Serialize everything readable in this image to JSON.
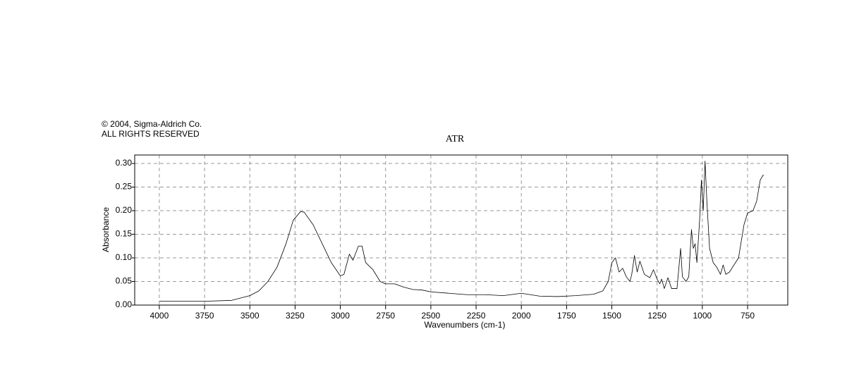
{
  "chart_data": {
    "type": "line",
    "copyright": [
      "© 2004, Sigma-Aldrich Co.",
      "ALL RIGHTS RESERVED"
    ],
    "title": "ATR",
    "x_label": "Wavenumbers (cm-1)",
    "y_label": "Absorbance",
    "xlim": [
      4136,
      528
    ],
    "ylim": [
      0,
      0.318
    ],
    "xticks": [
      4000,
      3750,
      3500,
      3250,
      3000,
      2750,
      2500,
      2250,
      2000,
      1750,
      1500,
      1250,
      1000,
      750
    ],
    "yticks": [
      {
        "value": 0,
        "label": "0.00"
      },
      {
        "value": 0.05,
        "label": "0.05"
      },
      {
        "value": 0.1,
        "label": "0.10"
      },
      {
        "value": 0.15,
        "label": "0.15"
      },
      {
        "value": 0.2,
        "label": "0.20"
      },
      {
        "value": 0.25,
        "label": "0.25"
      },
      {
        "value": 0.3,
        "label": "0.30"
      }
    ],
    "grid": true,
    "color": "#000000",
    "x": [
      4000,
      3750,
      3600,
      3500,
      3450,
      3400,
      3350,
      3300,
      3260,
      3220,
      3200,
      3150,
      3100,
      3050,
      3000,
      2980,
      2950,
      2930,
      2900,
      2880,
      2860,
      2820,
      2780,
      2750,
      2700,
      2650,
      2600,
      2550,
      2500,
      2400,
      2300,
      2200,
      2100,
      2000,
      1950,
      1900,
      1800,
      1700,
      1600,
      1550,
      1520,
      1500,
      1480,
      1460,
      1440,
      1420,
      1400,
      1390,
      1375,
      1360,
      1345,
      1320,
      1290,
      1270,
      1250,
      1235,
      1225,
      1210,
      1190,
      1170,
      1140,
      1120,
      1110,
      1090,
      1075,
      1060,
      1050,
      1040,
      1030,
      1015,
      1005,
      995,
      985,
      975,
      960,
      940,
      920,
      900,
      885,
      870,
      850,
      800,
      770,
      750,
      720,
      700,
      680,
      665,
      660
    ],
    "values": [
      0.008,
      0.008,
      0.01,
      0.02,
      0.03,
      0.05,
      0.08,
      0.13,
      0.18,
      0.198,
      0.197,
      0.17,
      0.13,
      0.09,
      0.062,
      0.065,
      0.108,
      0.095,
      0.125,
      0.125,
      0.09,
      0.075,
      0.05,
      0.045,
      0.045,
      0.038,
      0.033,
      0.032,
      0.028,
      0.025,
      0.022,
      0.022,
      0.02,
      0.025,
      0.022,
      0.019,
      0.018,
      0.02,
      0.023,
      0.03,
      0.05,
      0.09,
      0.1,
      0.07,
      0.078,
      0.06,
      0.05,
      0.065,
      0.105,
      0.07,
      0.093,
      0.065,
      0.058,
      0.075,
      0.055,
      0.045,
      0.055,
      0.035,
      0.058,
      0.035,
      0.035,
      0.12,
      0.06,
      0.05,
      0.06,
      0.16,
      0.12,
      0.13,
      0.09,
      0.18,
      0.265,
      0.2,
      0.305,
      0.22,
      0.12,
      0.09,
      0.08,
      0.065,
      0.085,
      0.065,
      0.07,
      0.1,
      0.17,
      0.195,
      0.2,
      0.22,
      0.265,
      0.275,
      0.275
    ]
  }
}
